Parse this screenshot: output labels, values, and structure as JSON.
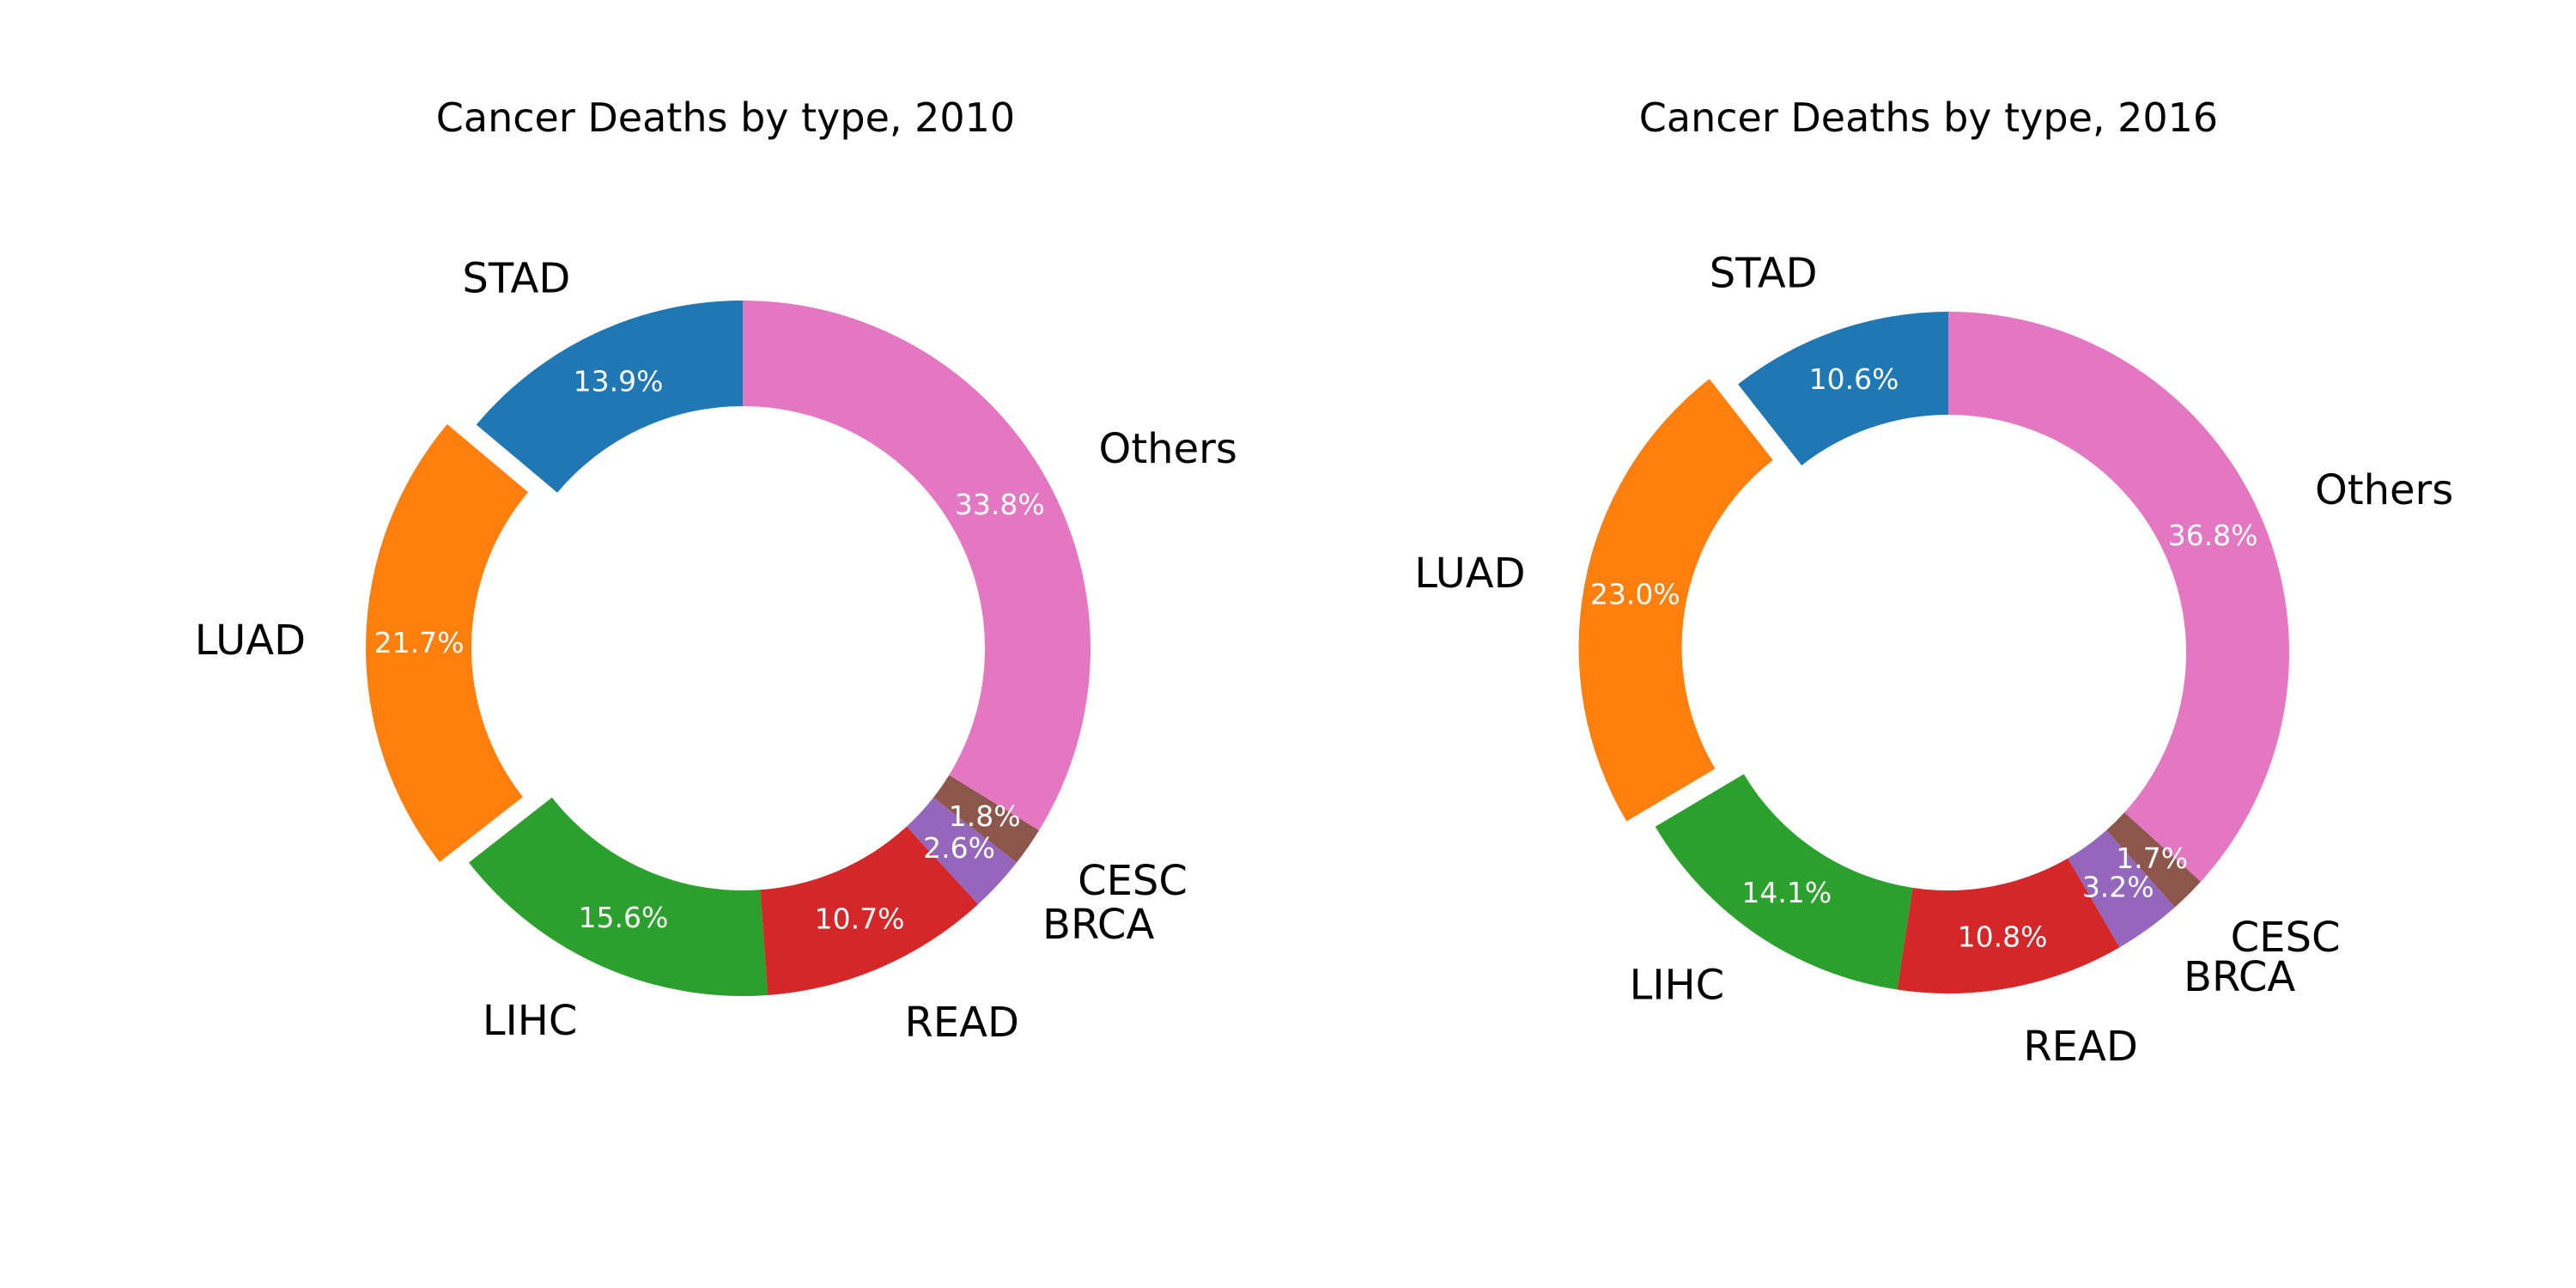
{
  "chart_data": [
    {
      "type": "pie",
      "donut": true,
      "title": "Cancer Deaths by type, 2010",
      "categories": [
        "STAD",
        "LUAD",
        "LIHC",
        "READ",
        "BRCA",
        "CESC",
        "Others"
      ],
      "values": [
        13.9,
        21.7,
        15.6,
        10.7,
        2.6,
        1.8,
        33.8
      ],
      "value_labels": [
        "13.9%",
        "21.7%",
        "15.6%",
        "10.7%",
        "2.6%",
        "1.8%",
        "33.8%"
      ],
      "colors": [
        "#1f77b4",
        "#ff7f0e",
        "#2ca02c",
        "#d62728",
        "#9467bd",
        "#8c564b",
        "#e377c2"
      ],
      "exploded": [
        "LUAD"
      ],
      "start": "top",
      "direction": "counterclockwise"
    },
    {
      "type": "pie",
      "donut": true,
      "title": "Cancer Deaths by type, 2016",
      "categories": [
        "STAD",
        "LUAD",
        "LIHC",
        "READ",
        "BRCA",
        "CESC",
        "Others"
      ],
      "values": [
        10.6,
        23.0,
        14.1,
        10.8,
        3.2,
        1.7,
        36.8
      ],
      "value_labels": [
        "10.6%",
        "23.0%",
        "14.1%",
        "10.8%",
        "3.2%",
        "1.7%",
        "36.8%"
      ],
      "colors": [
        "#1f77b4",
        "#ff7f0e",
        "#2ca02c",
        "#d62728",
        "#9467bd",
        "#8c564b",
        "#e377c2"
      ],
      "exploded": [
        "LUAD"
      ],
      "start": "top",
      "direction": "counterclockwise"
    }
  ]
}
